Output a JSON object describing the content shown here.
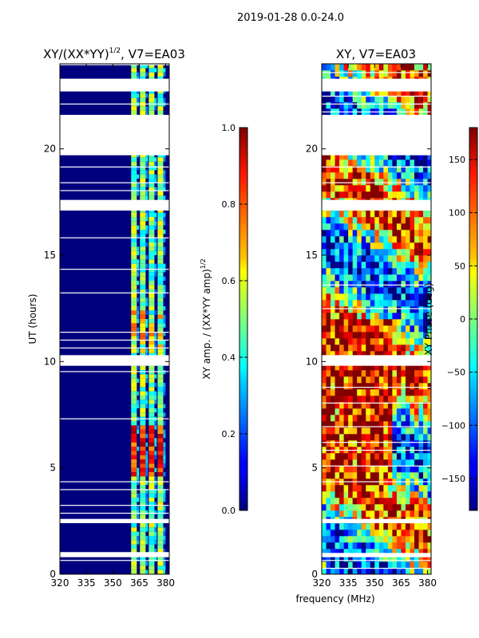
{
  "figure": {
    "suptitle": "2019-01-28 0.0-24.0",
    "xlabel_shared": "frequency (MHz)"
  },
  "chart_data": [
    {
      "type": "heatmap",
      "title": "XY/(XX*YY)^1/2, V7=EA03",
      "title_main": "XY/(XX*YY)",
      "title_exp": "1/2",
      "title_tail": ", V7=EA03",
      "ylabel": "UT (hours)",
      "xlim": [
        320,
        382
      ],
      "ylim": [
        0,
        24
      ],
      "xticks": [
        320,
        335,
        350,
        365,
        380
      ],
      "yticks": [
        0,
        5,
        10,
        15,
        20
      ],
      "colorbar": {
        "label": "XY amp. / (XX*YY amp)^1/2",
        "label_main": "XY amp. / (XX*YY amp)",
        "label_exp": "1/2",
        "range": [
          0.0,
          1.0
        ],
        "ticks": [
          "0.0",
          "0.2",
          "0.4",
          "0.6",
          "0.8",
          "1.0"
        ],
        "colormap": "jet"
      },
      "bright_channels_mhz": [
        362,
        367,
        372,
        377
      ],
      "bright_hours": [
        4.5,
        7.0
      ],
      "gap_hours": [
        [
          0.8,
          1.0
        ],
        [
          2.4,
          2.6
        ],
        [
          9.8,
          10.3
        ],
        [
          17.1,
          17.6
        ],
        [
          19.7,
          21.6
        ],
        [
          22.7,
          23.3
        ]
      ]
    },
    {
      "type": "heatmap",
      "title": "XY, V7=EA03",
      "ylabel": "",
      "xlim": [
        320,
        382
      ],
      "ylim": [
        0,
        24
      ],
      "xticks": [
        320,
        335,
        350,
        365,
        380
      ],
      "yticks": [
        0,
        5,
        10,
        15,
        20
      ],
      "colorbar": {
        "label": "XY Phase (deg)",
        "range": [
          -180,
          180
        ],
        "ticks": [
          "−150",
          "−100",
          "−50",
          "0",
          "50",
          "100",
          "150"
        ],
        "colormap": "jet"
      },
      "gap_hours": [
        [
          0.8,
          1.0
        ],
        [
          2.4,
          2.6
        ],
        [
          9.8,
          10.3
        ],
        [
          17.1,
          17.6
        ],
        [
          19.7,
          21.6
        ],
        [
          22.7,
          23.3
        ]
      ]
    }
  ],
  "colors": {
    "deep_blue": "#00007f",
    "cyan": "#00ffff",
    "yellow": "#ffff00",
    "red": "#ff0000",
    "dark_red": "#7f0000"
  }
}
